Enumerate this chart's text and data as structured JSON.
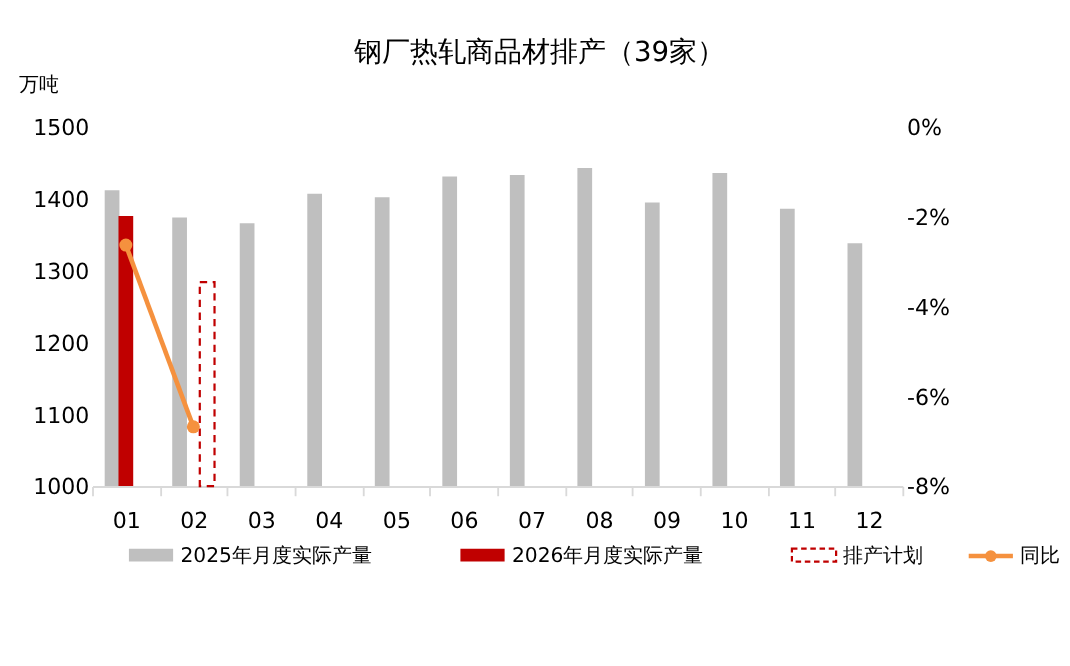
{
  "chart_data": {
    "type": "bar",
    "title": "钢厂热轧商品材排产（39家）",
    "ylabel": "万吨",
    "categories": [
      "01",
      "02",
      "03",
      "04",
      "05",
      "06",
      "07",
      "08",
      "09",
      "10",
      "11",
      "12"
    ],
    "series": [
      {
        "name": "2025年月度实际产量",
        "color": "#bfbfbf",
        "values": [
          1412,
          1374,
          1366,
          1407,
          1402,
          1431,
          1433,
          1443,
          1395,
          1436,
          1386,
          1338
        ]
      },
      {
        "name": "2026年月度实际产量",
        "color": "#c00000",
        "values": [
          1376,
          null,
          null,
          null,
          null,
          null,
          null,
          null,
          null,
          null,
          null,
          null
        ]
      },
      {
        "name": "排产计划",
        "color": "#c00000",
        "line_style": "dashed",
        "values": [
          null,
          1284,
          null,
          null,
          null,
          null,
          null,
          null,
          null,
          null,
          null,
          null
        ]
      },
      {
        "name": "同比",
        "type": "line",
        "axis": "y2",
        "color": "#f5913e",
        "marker": "circle",
        "values": [
          -2.63,
          -6.68,
          null,
          null,
          null,
          null,
          null,
          null,
          null,
          null,
          null,
          null
        ]
      }
    ],
    "ylim": [
      1000,
      1500
    ],
    "yticks": [
      1000,
      1100,
      1200,
      1300,
      1400,
      1500
    ],
    "y2lim": [
      -8,
      0
    ],
    "y2ticks": [
      {
        "value": 0,
        "label": "0%"
      },
      {
        "value": -2,
        "label": "-2%"
      },
      {
        "value": -4,
        "label": "-4%"
      },
      {
        "value": -6,
        "label": "-6%"
      },
      {
        "value": -8,
        "label": "-8%"
      }
    ],
    "grid": false,
    "legend": "bottom"
  }
}
